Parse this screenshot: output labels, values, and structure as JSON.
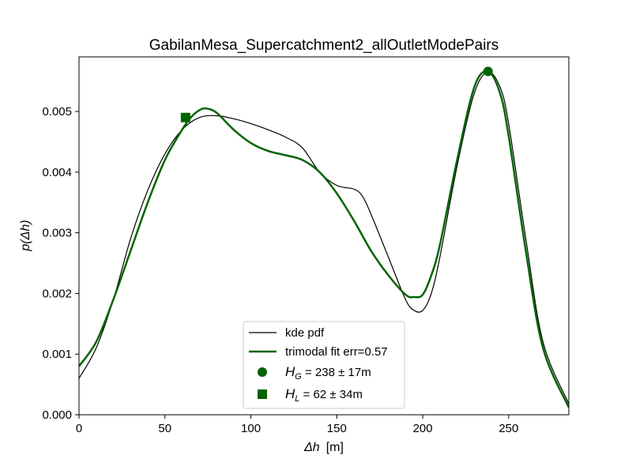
{
  "chart_data": {
    "type": "line",
    "title": "GabilanMesa_Supercatchment2_allOutletModePairs",
    "xlabel_symbol": "Δh",
    "xlabel_unit": "[m]",
    "ylabel": "p(Δh)",
    "xlim": [
      0,
      285
    ],
    "ylim": [
      0,
      0.0059
    ],
    "xticks": [
      0,
      50,
      100,
      150,
      200,
      250
    ],
    "yticks": [
      0.0,
      0.001,
      0.002,
      0.003,
      0.004,
      0.005
    ],
    "ytick_labels": [
      "0.000",
      "0.001",
      "0.002",
      "0.003",
      "0.004",
      "0.005"
    ],
    "grid": false,
    "legend_position": "bottom-center",
    "series": [
      {
        "name": "kde pdf",
        "color": "#000000",
        "x": [
          0,
          10,
          20,
          30,
          40,
          50,
          60,
          70,
          80,
          90,
          100,
          110,
          120,
          130,
          140,
          150,
          160,
          165,
          170,
          180,
          190,
          195,
          200,
          205,
          210,
          220,
          230,
          238,
          245,
          250,
          260,
          270,
          285
        ],
        "y": [
          0.0006,
          0.0011,
          0.0019,
          0.0029,
          0.0037,
          0.0043,
          0.0047,
          0.0049,
          0.00493,
          0.00488,
          0.0048,
          0.0047,
          0.00458,
          0.0044,
          0.004,
          0.00378,
          0.00372,
          0.0036,
          0.0033,
          0.0026,
          0.0019,
          0.00172,
          0.00172,
          0.002,
          0.0026,
          0.0041,
          0.0053,
          0.00565,
          0.0054,
          0.0048,
          0.0029,
          0.0012,
          0.00018
        ]
      },
      {
        "name": "trimodal fit err=0.57",
        "color": "#006400",
        "x": [
          0,
          10,
          20,
          30,
          40,
          50,
          60,
          65,
          70,
          74,
          80,
          90,
          100,
          110,
          120,
          130,
          140,
          150,
          160,
          170,
          180,
          190,
          195,
          200,
          205,
          210,
          220,
          230,
          238,
          245,
          250,
          260,
          270,
          285
        ],
        "y": [
          0.0008,
          0.0012,
          0.0019,
          0.0027,
          0.0035,
          0.0042,
          0.0047,
          0.0049,
          0.00502,
          0.00505,
          0.00498,
          0.0047,
          0.00448,
          0.00435,
          0.00428,
          0.0042,
          0.004,
          0.00365,
          0.0032,
          0.0027,
          0.0023,
          0.00198,
          0.00194,
          0.00198,
          0.0023,
          0.0028,
          0.0042,
          0.0054,
          0.00566,
          0.0053,
          0.0046,
          0.0027,
          0.0011,
          0.00012
        ]
      }
    ],
    "markers": [
      {
        "name": "H_G",
        "shape": "circle",
        "x": 238,
        "y": 0.00566,
        "color": "#006400"
      },
      {
        "name": "H_L",
        "shape": "square",
        "x": 62,
        "y": 0.0049,
        "color": "#006400"
      }
    ],
    "legend": [
      {
        "kind": "line",
        "color": "#000000",
        "width": 1.2,
        "label": "kde pdf"
      },
      {
        "kind": "line",
        "color": "#006400",
        "width": 2.5,
        "label": "trimodal fit err=0.57"
      },
      {
        "kind": "circle",
        "color": "#006400",
        "label_sym": "H",
        "label_sub": "G",
        "label_rest": " = 238 ± 17m"
      },
      {
        "kind": "square",
        "color": "#006400",
        "label_sym": "H",
        "label_sub": "L",
        "label_rest": " = 62 ± 34m"
      }
    ]
  }
}
